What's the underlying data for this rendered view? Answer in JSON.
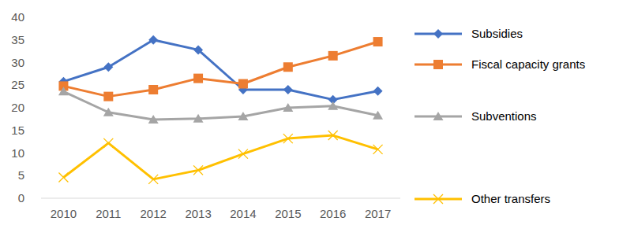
{
  "chart_data": {
    "type": "line",
    "categories": [
      "2010",
      "2011",
      "2012",
      "2013",
      "2014",
      "2015",
      "2016",
      "2017"
    ],
    "series": [
      {
        "name": "Subsidies",
        "color": "#4472c4",
        "marker": "diamond",
        "values": [
          25.8,
          29,
          35,
          32.8,
          24,
          24,
          21.8,
          23.7
        ]
      },
      {
        "name": "Fiscal capacity grants",
        "color": "#ed7d31",
        "marker": "square",
        "values": [
          24.8,
          22.5,
          24,
          26.5,
          25.3,
          29,
          31.5,
          34.6
        ]
      },
      {
        "name": "Subventions",
        "color": "#a5a5a5",
        "marker": "triangle",
        "values": [
          23.6,
          19,
          17.4,
          17.6,
          18.1,
          20,
          20.4,
          18.3
        ]
      },
      {
        "name": "Other transfers",
        "color": "#ffc000",
        "marker": "x",
        "values": [
          4.6,
          12.2,
          4.2,
          6.2,
          9.8,
          13.2,
          13.9,
          10.8
        ]
      }
    ],
    "ylim": [
      0,
      40
    ],
    "yticks": [
      0,
      5,
      10,
      15,
      20,
      25,
      30,
      35,
      40
    ],
    "grid": false,
    "legend": "right"
  }
}
